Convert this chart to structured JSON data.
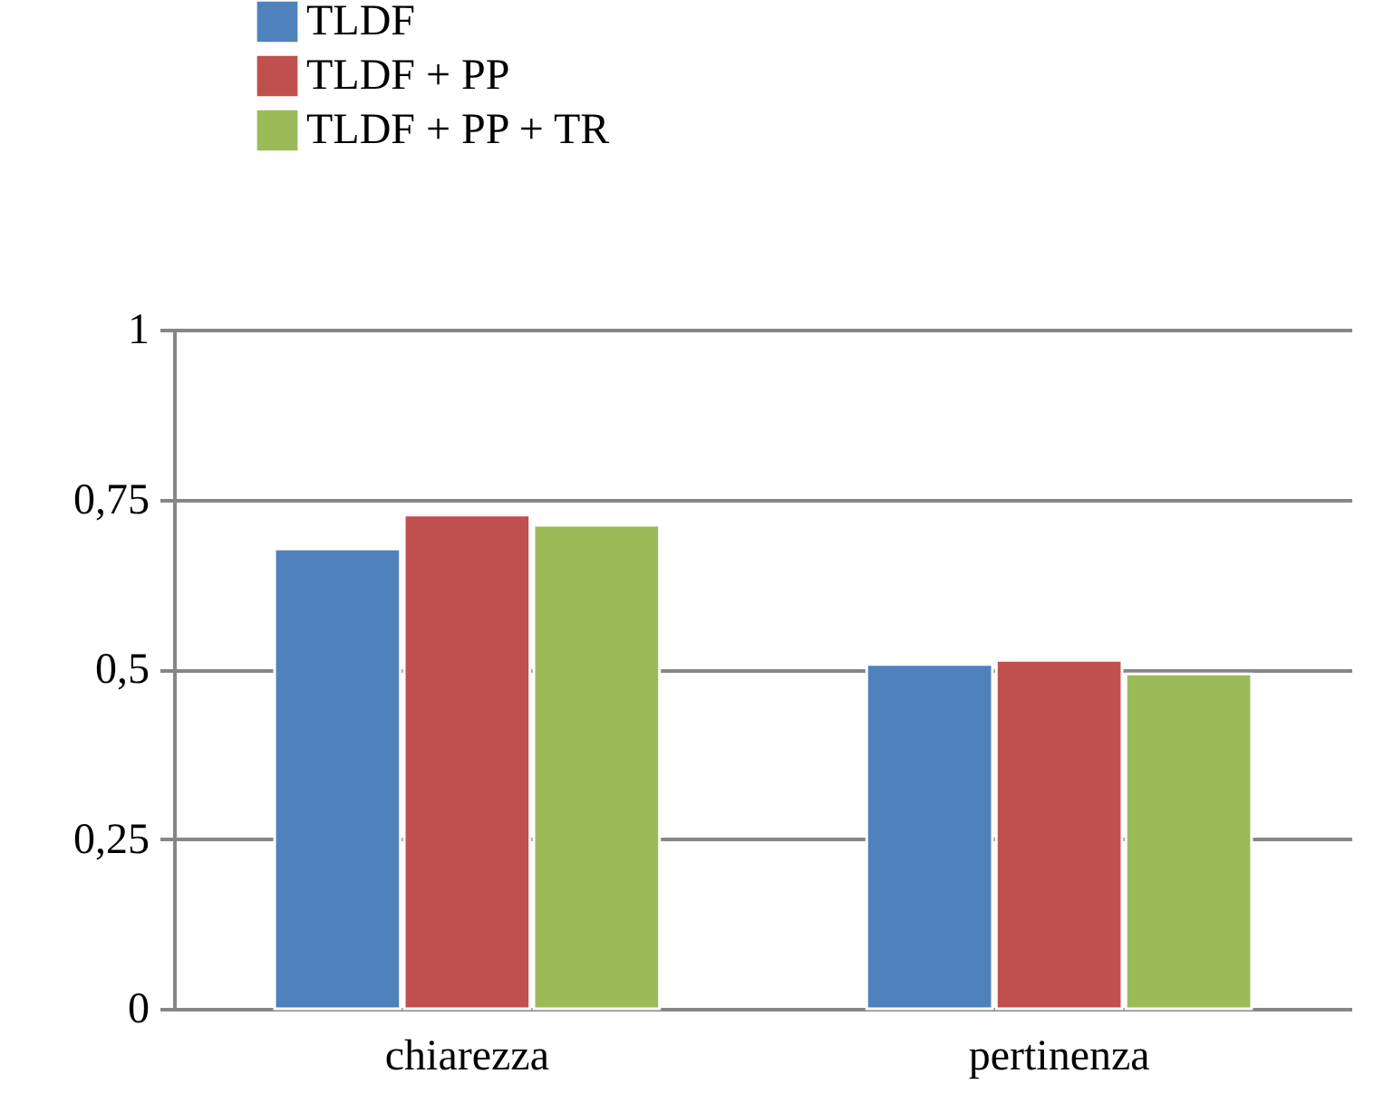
{
  "chart_data": {
    "type": "bar",
    "categories": [
      "chiarezza",
      "pertinenza"
    ],
    "series": [
      {
        "name": "TLDF",
        "color": "#4f81bd",
        "values": [
          0.677,
          0.507
        ]
      },
      {
        "name": "TLDF + PP",
        "color": "#c0504d",
        "values": [
          0.727,
          0.513
        ]
      },
      {
        "name": "TLDF + PP + TR",
        "color": "#9bbb59",
        "values": [
          0.712,
          0.493
        ]
      }
    ],
    "ylim": [
      0,
      1
    ],
    "yticks": [
      "0",
      {
        "value": 0.25,
        "label": "0,25"
      },
      {
        "value": 0.5,
        "label": "0,5"
      },
      {
        "value": 0.75,
        "label": "0,75"
      },
      1
    ],
    "grid": "y",
    "legend": "top"
  }
}
